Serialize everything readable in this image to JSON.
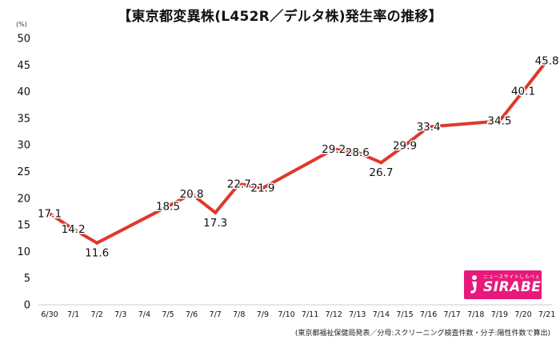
{
  "title": "【東京都変異株(L452R／デルタ株)発生率の推移】",
  "source_note": "(東京都福祉保健局発表／分母:スクリーニング検査件数・分子:陽性件数で算出)",
  "logo": {
    "tagline": "ニュースサイトしらべぇ",
    "wordmark": "SIRABEE",
    "color": "#e8197a"
  },
  "chart_data": {
    "type": "line",
    "unit_label": "(%)",
    "categories": [
      "6/30",
      "7/1",
      "7/2",
      "7/3",
      "7/4",
      "7/5",
      "7/6",
      "7/7",
      "7/8",
      "7/9",
      "7/10",
      "7/11",
      "7/12",
      "7/13",
      "7/14",
      "7/15",
      "7/16",
      "7/17",
      "7/18",
      "7/19",
      "7/20",
      "7/21"
    ],
    "values": [
      17.1,
      14.2,
      11.6,
      null,
      null,
      18.5,
      20.8,
      17.3,
      22.7,
      21.9,
      null,
      null,
      29.2,
      28.6,
      26.7,
      29.9,
      33.4,
      null,
      null,
      34.5,
      40.1,
      45.8
    ],
    "ylim": [
      0,
      50
    ],
    "yticks": [
      0,
      5,
      10,
      15,
      20,
      25,
      30,
      35,
      40,
      45,
      50
    ],
    "line_color": "#e0372b",
    "grid": false
  }
}
